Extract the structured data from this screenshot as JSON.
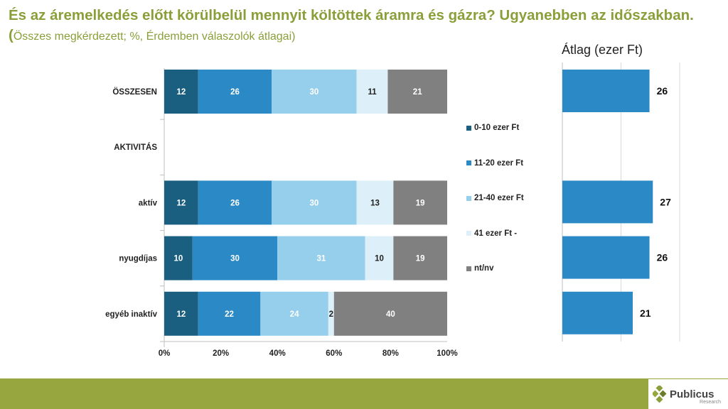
{
  "title": {
    "main": "És az áremelkedés előtt körülbelül mennyit költöttek áramra és gázra? Ugyanebben az időszakban.(",
    "sub": "Összes megkérdezett; %, Érdemben válaszolók átlagai)"
  },
  "colors": {
    "s1": "#1a5f80",
    "s2": "#2b8ac6",
    "s3": "#95cfec",
    "s4": "#ddeff9",
    "s5": "#808080",
    "avg_bar": "#2b8ac6",
    "footer": "#98a640",
    "title": "#8a9f3a"
  },
  "chart_data": [
    {
      "type": "bar",
      "orientation": "horizontal",
      "stacked": true,
      "categories": [
        "ÖSSZESEN",
        "AKTIVITÁS",
        "aktív",
        "nyugdíjas",
        "egyéb inaktív"
      ],
      "series": [
        {
          "name": "0-10 ezer Ft",
          "values": [
            12,
            null,
            12,
            10,
            12
          ]
        },
        {
          "name": "11-20 ezer Ft",
          "values": [
            26,
            null,
            26,
            30,
            22
          ]
        },
        {
          "name": "21-40 ezer Ft",
          "values": [
            30,
            null,
            30,
            31,
            24
          ]
        },
        {
          "name": "41 ezer Ft -",
          "values": [
            11,
            null,
            13,
            10,
            2
          ]
        },
        {
          "name": "nt/nv",
          "values": [
            21,
            null,
            19,
            19,
            40
          ]
        }
      ],
      "xlim": [
        0,
        100
      ],
      "xticks": [
        "0%",
        "20%",
        "40%",
        "60%",
        "80%",
        "100%"
      ],
      "legend_position": "right"
    },
    {
      "type": "bar",
      "orientation": "horizontal",
      "title": "Átlag (ezer Ft)",
      "categories": [
        "ÖSSZESEN",
        "AKTIVITÁS",
        "aktív",
        "nyugdíjas",
        "egyéb inaktív"
      ],
      "values": [
        26,
        null,
        27,
        26,
        21
      ],
      "xlim": [
        0,
        35
      ]
    }
  ],
  "logo": {
    "name": "Publicus",
    "sub": "Research"
  }
}
